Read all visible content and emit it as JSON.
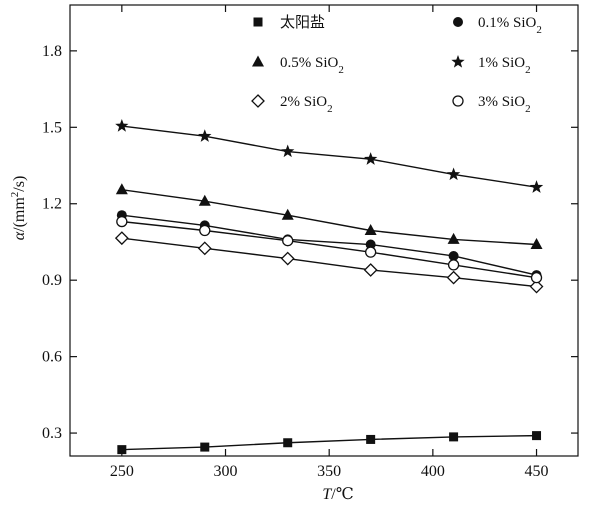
{
  "chart_data": {
    "type": "line",
    "x": [
      250,
      290,
      330,
      370,
      410,
      450
    ],
    "xlim": [
      225,
      470
    ],
    "ylim": [
      0.21,
      1.98
    ],
    "x_ticks": [
      250,
      300,
      350,
      400,
      450
    ],
    "y_ticks": [
      0.3,
      0.6,
      0.9,
      1.2,
      1.5,
      1.8
    ],
    "x_tick_labels": [
      "250",
      "300",
      "350",
      "400",
      "450"
    ],
    "y_tick_labels": [
      "0.3",
      "0.6",
      "0.9",
      "1.2",
      "1.5",
      "1.8"
    ],
    "xlabel": {
      "symbol": "T",
      "unit": "/℃"
    },
    "ylabel": {
      "symbol": "α",
      "unit_pre": "/(mm",
      "unit_sup": "2",
      "unit_post": "/s)"
    },
    "grid": false,
    "legend_placement": "top",
    "series": [
      {
        "name": "太阳盐",
        "name_main": "太阳盐",
        "name_sub": "",
        "name_tail": "",
        "marker": "square",
        "values": [
          0.235,
          0.245,
          0.262,
          0.275,
          0.285,
          0.29
        ]
      },
      {
        "name": "0.1% SiO2",
        "name_main": "0.1% SiO",
        "name_sub": "2",
        "name_tail": "",
        "marker": "circle",
        "values": [
          1.155,
          1.115,
          1.06,
          1.04,
          0.995,
          0.92
        ]
      },
      {
        "name": "0.5% SiO2",
        "name_main": "0.5% SiO",
        "name_sub": "2",
        "name_tail": "",
        "marker": "triangle",
        "values": [
          1.255,
          1.21,
          1.155,
          1.095,
          1.06,
          1.04
        ]
      },
      {
        "name": "1% SiO2",
        "name_main": "1% SiO",
        "name_sub": "2",
        "name_tail": "",
        "marker": "star",
        "values": [
          1.505,
          1.465,
          1.405,
          1.375,
          1.315,
          1.265
        ]
      },
      {
        "name": "2% SiO2",
        "name_main": "2% SiO",
        "name_sub": "2",
        "name_tail": "",
        "marker": "diamond",
        "values": [
          1.065,
          1.025,
          0.985,
          0.94,
          0.91,
          0.875
        ]
      },
      {
        "name": "3% SiO2",
        "name_main": "3% SiO",
        "name_sub": "2",
        "name_tail": "",
        "marker": "open-circle",
        "values": [
          1.13,
          1.095,
          1.055,
          1.01,
          0.96,
          0.91
        ]
      }
    ]
  }
}
